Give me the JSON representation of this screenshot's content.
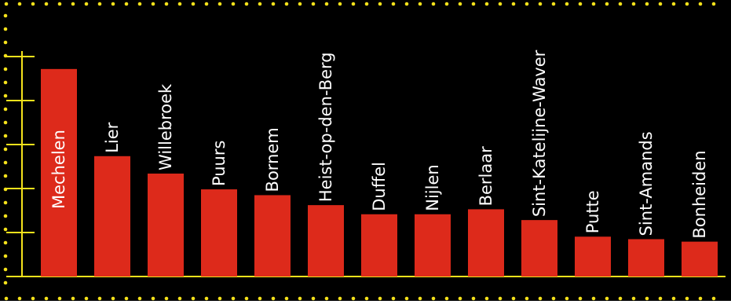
{
  "colors": {
    "background": "#000000",
    "bar": "#dd2a1b",
    "axis": "#f5e21b",
    "border_dots": "#f5e21b",
    "label": "#ffffff"
  },
  "chart_data": {
    "type": "bar",
    "title": "",
    "xlabel": "",
    "ylabel": "",
    "categories": [
      "Mechelen",
      "Lier",
      "Willebroek",
      "Puurs",
      "Bornem",
      "Heist-op-den-Berg",
      "Duffel",
      "Nijlen",
      "Berlaar",
      "Sint-Katelijne-Waver",
      "Putte",
      "Sint-Amands",
      "Bonheiden"
    ],
    "values": [
      250,
      145,
      124,
      105,
      98,
      86,
      75,
      75,
      81,
      68,
      48,
      45,
      42
    ],
    "ylim": [
      0,
      300
    ],
    "y_ticks": [
      0,
      53,
      106,
      159,
      212,
      265
    ],
    "grid": false,
    "legend": "none"
  }
}
